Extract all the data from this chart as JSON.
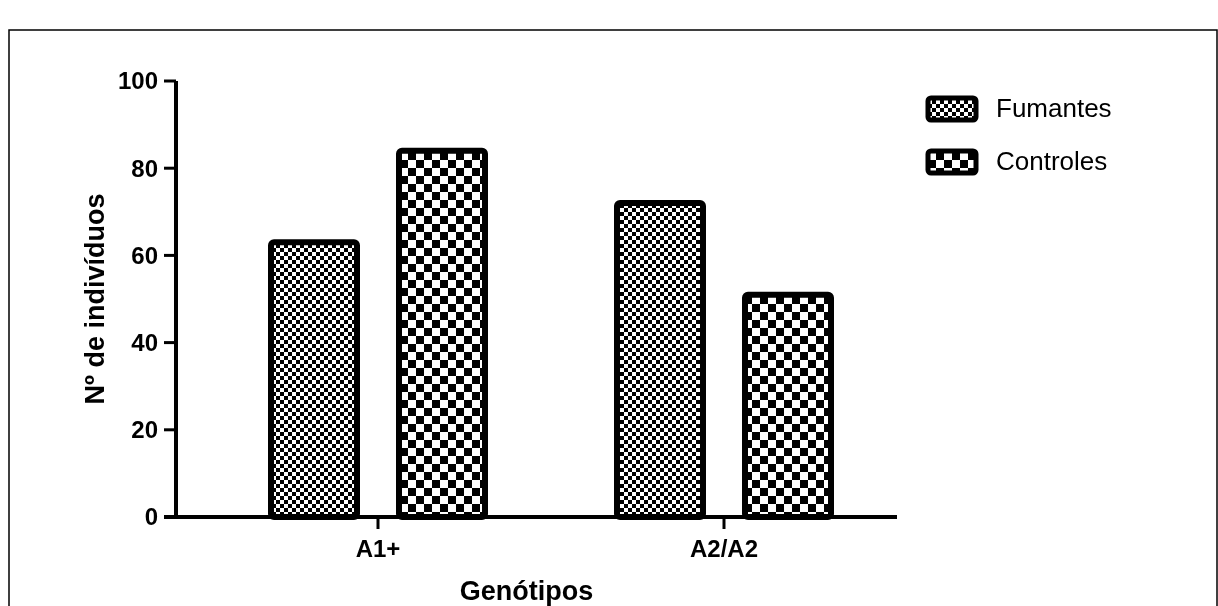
{
  "chart_data": {
    "type": "bar",
    "xlabel": "Genótipos",
    "ylabel": "Nº de indivíduos",
    "categories": [
      "A1+",
      "A2/A2"
    ],
    "series": [
      {
        "name": "Fumantes",
        "color": "#000000",
        "values": [
          63,
          72
        ]
      },
      {
        "name": "Controles",
        "color": "#000000",
        "values": [
          84,
          51
        ]
      }
    ],
    "ylim": [
      0,
      100
    ],
    "yticks": [
      0,
      20,
      40,
      60,
      80,
      100
    ],
    "legend": "top right"
  }
}
